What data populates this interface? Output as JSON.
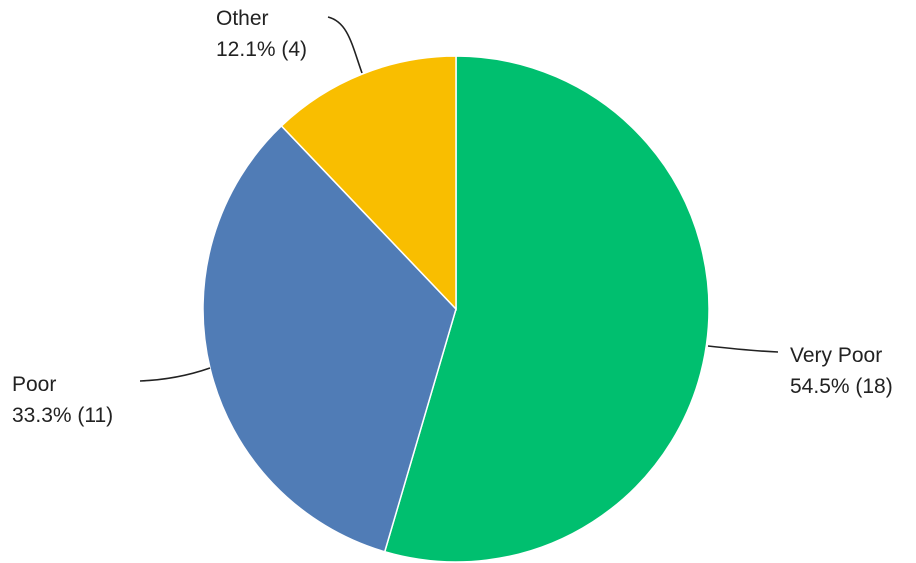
{
  "chart_data": {
    "type": "pie",
    "title": "",
    "start_angle_deg": 0,
    "direction": "clockwise",
    "slices": [
      {
        "name": "Very Poor",
        "percent_label": "54.5% (18)",
        "value": 18,
        "percent": 54.5,
        "color": "#00BF6F"
      },
      {
        "name": "Poor",
        "percent_label": "33.3% (11)",
        "value": 11,
        "percent": 33.3,
        "color": "#507CB6"
      },
      {
        "name": "Other",
        "percent_label": "12.1% (4)",
        "value": 4,
        "percent": 12.1,
        "color": "#F9BE00"
      }
    ]
  }
}
